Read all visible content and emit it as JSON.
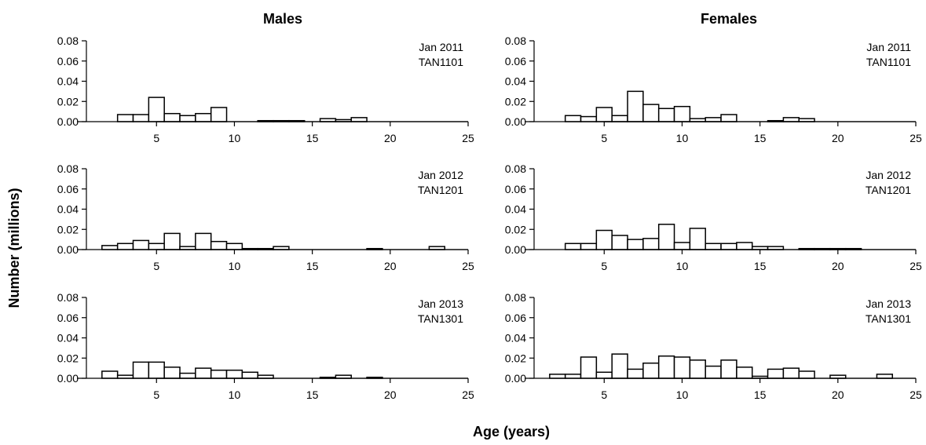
{
  "figure": {
    "columns": [
      "Males",
      "Females"
    ],
    "ylabel": "Number (millions)",
    "xlabel": "Age (years)"
  },
  "chart_data": [
    {
      "type": "bar",
      "sex": "Males",
      "annotation": [
        "Jan 2011",
        "TAN1101"
      ],
      "xlim": [
        0.5,
        25
      ],
      "ylim": [
        0,
        0.08
      ],
      "xticks": [
        5,
        10,
        15,
        20,
        25
      ],
      "yticks": [
        "0.00",
        "0.02",
        "0.04",
        "0.06",
        "0.08"
      ],
      "ages": [
        1,
        2,
        3,
        4,
        5,
        6,
        7,
        8,
        9,
        10,
        11,
        12,
        13,
        14,
        15,
        16,
        17,
        18,
        19,
        20,
        21,
        22,
        23,
        24,
        25
      ],
      "values": [
        0,
        0,
        0.007,
        0.007,
        0.024,
        0.008,
        0.006,
        0.008,
        0.014,
        0,
        0,
        0.001,
        0.001,
        0.001,
        0,
        0.003,
        0.002,
        0.004,
        0,
        0,
        0,
        0,
        0,
        0,
        0
      ]
    },
    {
      "type": "bar",
      "sex": "Females",
      "annotation": [
        "Jan 2011",
        "TAN1101"
      ],
      "xlim": [
        0.5,
        25
      ],
      "ylim": [
        0,
        0.08
      ],
      "xticks": [
        5,
        10,
        15,
        20,
        25
      ],
      "yticks": [
        "0.00",
        "0.02",
        "0.04",
        "0.06",
        "0.08"
      ],
      "ages": [
        1,
        2,
        3,
        4,
        5,
        6,
        7,
        8,
        9,
        10,
        11,
        12,
        13,
        14,
        15,
        16,
        17,
        18,
        19,
        20,
        21,
        22,
        23,
        24,
        25
      ],
      "values": [
        0,
        0,
        0.006,
        0.005,
        0.014,
        0.006,
        0.03,
        0.017,
        0.013,
        0.015,
        0.003,
        0.004,
        0.007,
        0,
        0,
        0.001,
        0.004,
        0.003,
        0,
        0,
        0,
        0,
        0,
        0,
        0
      ]
    },
    {
      "type": "bar",
      "sex": "Males",
      "annotation": [
        "Jan 2012",
        "TAN1201"
      ],
      "xlim": [
        0.5,
        25
      ],
      "ylim": [
        0,
        0.08
      ],
      "xticks": [
        5,
        10,
        15,
        20,
        25
      ],
      "yticks": [
        "0.00",
        "0.02",
        "0.04",
        "0.06",
        "0.08"
      ],
      "ages": [
        1,
        2,
        3,
        4,
        5,
        6,
        7,
        8,
        9,
        10,
        11,
        12,
        13,
        14,
        15,
        16,
        17,
        18,
        19,
        20,
        21,
        22,
        23,
        24,
        25
      ],
      "values": [
        0,
        0.004,
        0.006,
        0.009,
        0.006,
        0.016,
        0.003,
        0.016,
        0.008,
        0.006,
        0.001,
        0.001,
        0.003,
        0,
        0,
        0,
        0,
        0,
        0.001,
        0,
        0,
        0,
        0.003,
        0,
        0
      ]
    },
    {
      "type": "bar",
      "sex": "Females",
      "annotation": [
        "Jan 2012",
        "TAN1201"
      ],
      "xlim": [
        0.5,
        25
      ],
      "ylim": [
        0,
        0.08
      ],
      "xticks": [
        5,
        10,
        15,
        20,
        25
      ],
      "yticks": [
        "0.00",
        "0.02",
        "0.04",
        "0.06",
        "0.08"
      ],
      "ages": [
        1,
        2,
        3,
        4,
        5,
        6,
        7,
        8,
        9,
        10,
        11,
        12,
        13,
        14,
        15,
        16,
        17,
        18,
        19,
        20,
        21,
        22,
        23,
        24,
        25
      ],
      "values": [
        0,
        0,
        0.006,
        0.006,
        0.019,
        0.014,
        0.01,
        0.011,
        0.025,
        0.007,
        0.021,
        0.006,
        0.006,
        0.007,
        0.003,
        0.003,
        0,
        0.001,
        0.001,
        0.001,
        0.001,
        0,
        0,
        0,
        0
      ]
    },
    {
      "type": "bar",
      "sex": "Males",
      "annotation": [
        "Jan 2013",
        "TAN1301"
      ],
      "xlim": [
        0.5,
        25
      ],
      "ylim": [
        0,
        0.08
      ],
      "xticks": [
        5,
        10,
        15,
        20,
        25
      ],
      "yticks": [
        "0.00",
        "0.02",
        "0.04",
        "0.06",
        "0.08"
      ],
      "ages": [
        1,
        2,
        3,
        4,
        5,
        6,
        7,
        8,
        9,
        10,
        11,
        12,
        13,
        14,
        15,
        16,
        17,
        18,
        19,
        20,
        21,
        22,
        23,
        24,
        25
      ],
      "values": [
        0,
        0.007,
        0.003,
        0.016,
        0.016,
        0.011,
        0.005,
        0.01,
        0.008,
        0.008,
        0.006,
        0.003,
        0,
        0,
        0,
        0.001,
        0.003,
        0,
        0.001,
        0,
        0,
        0,
        0,
        0,
        0
      ]
    },
    {
      "type": "bar",
      "sex": "Females",
      "annotation": [
        "Jan 2013",
        "TAN1301"
      ],
      "xlim": [
        0.5,
        25
      ],
      "ylim": [
        0,
        0.08
      ],
      "xticks": [
        5,
        10,
        15,
        20,
        25
      ],
      "yticks": [
        "0.00",
        "0.02",
        "0.04",
        "0.06",
        "0.08"
      ],
      "ages": [
        1,
        2,
        3,
        4,
        5,
        6,
        7,
        8,
        9,
        10,
        11,
        12,
        13,
        14,
        15,
        16,
        17,
        18,
        19,
        20,
        21,
        22,
        23,
        24,
        25
      ],
      "values": [
        0,
        0.004,
        0.004,
        0.021,
        0.006,
        0.024,
        0.009,
        0.015,
        0.022,
        0.021,
        0.018,
        0.012,
        0.018,
        0.011,
        0.002,
        0.009,
        0.01,
        0.007,
        0,
        0.003,
        0,
        0,
        0.004,
        0,
        0
      ]
    }
  ]
}
